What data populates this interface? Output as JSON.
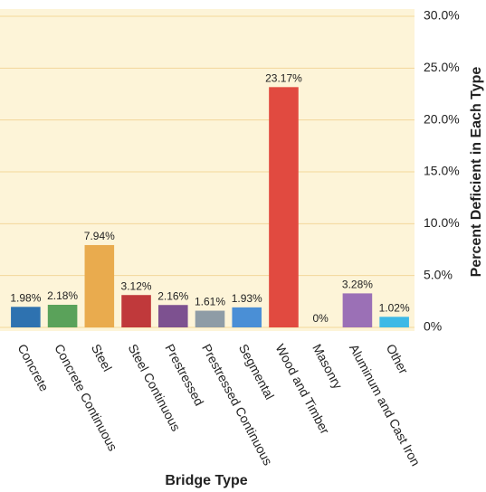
{
  "chart_data": {
    "type": "bar",
    "x_label": "Bridge Type",
    "y_label": "Percent Deficient in Each Type",
    "categories": [
      "Concrete",
      "Concrete Continuous",
      "Steel",
      "Steel Continuous",
      "Prestressed",
      "Prestressed Continuous",
      "Segmental",
      "Wood and Timber",
      "Masonry",
      "Aluminum and Cast Iron",
      "Other"
    ],
    "values": [
      1.98,
      2.18,
      7.94,
      3.12,
      2.16,
      1.61,
      1.93,
      23.17,
      0,
      3.28,
      1.02
    ],
    "value_labels": [
      "1.98%",
      "2.18%",
      "7.94%",
      "3.12%",
      "2.16%",
      "1.61%",
      "1.93%",
      "23.17%",
      "0%",
      "3.28%",
      "1.02%"
    ],
    "colors": [
      "#2e72b0",
      "#5aa25a",
      "#e9ab4e",
      "#c0393b",
      "#7d5190",
      "#8e9ca6",
      "#4a8fd6",
      "#e14a40",
      "#999999",
      "#9b70b6",
      "#3db9e6"
    ],
    "ylim": [
      0,
      30
    ],
    "yticks": [
      {
        "value": 0,
        "label": "0%"
      },
      {
        "value": 5,
        "label": "5.0%"
      },
      {
        "value": 10,
        "label": "10.0%"
      },
      {
        "value": 15,
        "label": "15.0%"
      },
      {
        "value": 20,
        "label": "20.0%"
      },
      {
        "value": 25,
        "label": "25.0%"
      },
      {
        "value": 30,
        "label": "30.0%"
      }
    ],
    "y_axis_side": "right",
    "grid": true
  }
}
